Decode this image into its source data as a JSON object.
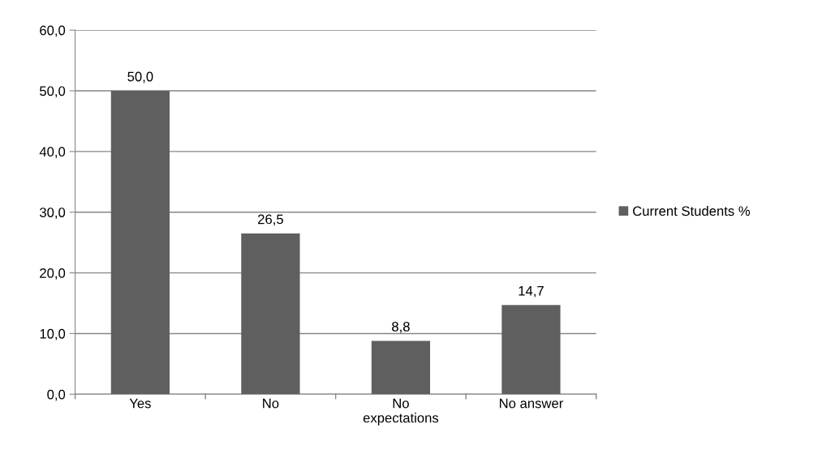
{
  "chart_data": {
    "type": "bar",
    "categories": [
      "Yes",
      "No",
      "No\nexpectations",
      "No answer"
    ],
    "series": [
      {
        "name": "Current Students %",
        "color": "#5f5f5f",
        "values": [
          50.0,
          26.5,
          8.8,
          14.7
        ],
        "value_labels": [
          "50,0",
          "26,5",
          "8,8",
          "14,7"
        ]
      }
    ],
    "ylim": [
      0,
      60
    ],
    "yticks": [
      {
        "value": 0,
        "label": "0,0"
      },
      {
        "value": 10,
        "label": "10,0"
      },
      {
        "value": 20,
        "label": "20,0"
      },
      {
        "value": 30,
        "label": "30,0"
      },
      {
        "value": 40,
        "label": "40,0"
      },
      {
        "value": 50,
        "label": "50,0"
      },
      {
        "value": 60,
        "label": "60,0"
      }
    ],
    "grid": "y",
    "legend": "right"
  }
}
